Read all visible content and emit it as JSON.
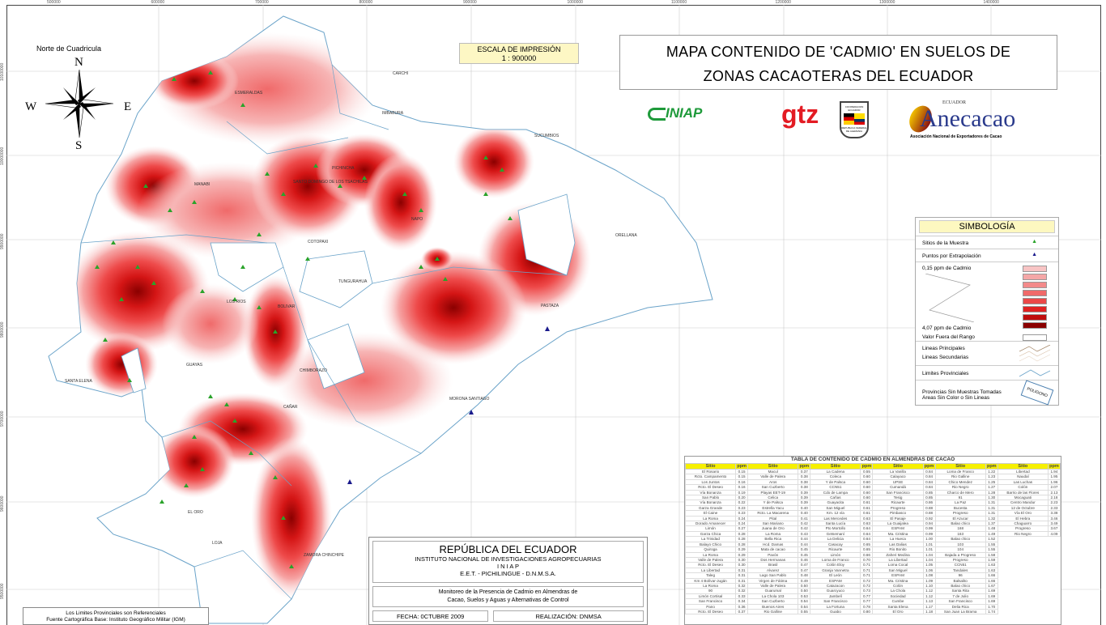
{
  "grid": {
    "x_labels": [
      "500000",
      "600000",
      "700000",
      "800000",
      "900000",
      "1000000",
      "1100000",
      "1200000",
      "1300000",
      "1400000"
    ],
    "y_labels": [
      "10100000",
      "10000000",
      "9900000",
      "9800000",
      "9700000",
      "9600000",
      "9500000"
    ]
  },
  "north_arrow": {
    "title": "Norte de Cuadricula",
    "n": "N",
    "s": "S",
    "e": "E",
    "w": "W"
  },
  "scale": {
    "label": "ESCALA DE IMPRESIÓN",
    "value": "1 : 900000"
  },
  "title": {
    "line1": "MAPA CONTENIDO DE 'CADMIO' EN SUELOS DE",
    "line2": "ZONAS CACAOTERAS DEL ECUADOR"
  },
  "logos": {
    "iniap": "INIAP",
    "gtz": "gtz",
    "gtz_shield_top": "COOPERACION ECUADOR",
    "gtz_shield_bottom": "REPUBLICA FEDERAL DE ALEMANIA",
    "anecacao_country": "ECUADOR",
    "anecacao": "Anecacao",
    "anecacao_sub": "Asociación Nacional de Exportadores de Cacao"
  },
  "provinces": [
    "ESMERALDAS",
    "CARCHI",
    "IMBABURA",
    "SUCUMBIOS",
    "MANABI",
    "SANTO DOMINGO DE LOS TSACHILAS",
    "PICHINCHA",
    "NAPO",
    "ORELLANA",
    "COTOPAXI",
    "TUNGURAHUA",
    "LOS RIOS",
    "BOLIVAR",
    "PASTAZA",
    "GUAYAS",
    "SANTA ELENA",
    "CHIMBORAZO",
    "CAÑAR",
    "MORONA SANTIAGO",
    "EL ORO",
    "LOJA",
    "ZAMORA CHINCHIPE"
  ],
  "legend": {
    "title": "SIMBOLOGÍA",
    "sites": "Sitios de la Muestra",
    "extrapolation": "Puntos por Extrapolación",
    "min": "0,15 ppm de Cadmio",
    "max": "4,07 ppm de Cadmio",
    "out_of_range": "Valor Fuera del Rango",
    "main_lines": "Lineas Principales",
    "secondary_lines": "Lineas Secundarias",
    "boundaries": "Limites Provinciales",
    "no_samples_1": "Provincias Sin Muestras Tomadas",
    "no_samples_2": "Areas Sin Color o Sin Lineas",
    "polygon": "POLIGONO",
    "ramp": [
      "#f8c4c4",
      "#f5a7a7",
      "#f38a8a",
      "#f06a6a",
      "#eb4848",
      "#e02222",
      "#bf0d0d",
      "#8a0000"
    ],
    "site_color": "#2aa32a",
    "extrap_color": "#1a1a8c"
  },
  "table": {
    "title": "TABLA DE CONTENIDO DE CADMIO EN ALMENDRAS DE CACAO",
    "col_site": "Sitio",
    "col_ppm": "ppm",
    "columns": [
      [
        [
          "El Rosario",
          "0.15"
        ],
        [
          "Rcto. Campamento",
          "0.15"
        ],
        [
          "Los Juntos",
          "0.16"
        ],
        [
          "Rcto. El Deseo",
          "0.16"
        ],
        [
          "Vía Bonanza",
          "0.19"
        ],
        [
          "San Pablo",
          "0.20"
        ],
        [
          "Vía Bonanza",
          "0.22"
        ],
        [
          "Garza Grande",
          "0.23"
        ],
        [
          "El Caine",
          "0.23"
        ],
        [
          "La Roma",
          "0.24"
        ],
        [
          "Dorado Amanecer",
          "0.24"
        ],
        [
          "Limón",
          "0.27"
        ],
        [
          "Garza Chica",
          "0.28"
        ],
        [
          "La Trinidad",
          "0.28"
        ],
        [
          "Balayo Chico",
          "0.28"
        ],
        [
          "Quiroga",
          "0.29"
        ],
        [
          "La Roma",
          "0.29"
        ],
        [
          "Valle de Palera",
          "0.30"
        ],
        [
          "Rcto. El Deseo",
          "0.30"
        ],
        [
          "La Libertad",
          "0.31"
        ],
        [
          "Taleg",
          "0.31"
        ],
        [
          "Km 4 Bolívar-Jugán",
          "0.31"
        ],
        [
          "La Roma",
          "0.32"
        ],
        [
          "90",
          "0.32"
        ],
        [
          "Limón Cortisal",
          "0.33"
        ],
        [
          "San Francisco",
          "0.34"
        ],
        [
          "Pano",
          "0.36"
        ],
        [
          "Rcto. El Deseo",
          "0.37"
        ]
      ],
      [
        [
          "Macul",
          "0.37"
        ],
        [
          "Valle de Palera",
          "0.38"
        ],
        [
          "Aros",
          "0.38"
        ],
        [
          "San Cuzberto",
          "0.38"
        ],
        [
          "Playas EET-19",
          "0.39"
        ],
        [
          "Celica",
          "0.39"
        ],
        [
          "Y de Palsca",
          "0.39"
        ],
        [
          "Estrella Yacu",
          "0.40"
        ],
        [
          "Rcto. La Macarena",
          "0.40"
        ],
        [
          "Pital",
          "0.41"
        ],
        [
          "San Mariano",
          "0.42"
        ],
        [
          "Juana de Oro",
          "0.42"
        ],
        [
          "La Roma",
          "0.43"
        ],
        [
          "Bella Rica",
          "0.44"
        ],
        [
          "Hcd. Damas",
          "0.44"
        ],
        [
          "Mata de cacao",
          "0.45"
        ],
        [
          "Pavón",
          "0.45"
        ],
        [
          "Dos Hermanas",
          "0.46"
        ],
        [
          "Brasil",
          "0.47"
        ],
        [
          "Alvarez",
          "0.47"
        ],
        [
          "Lago San Pablo",
          "0.48"
        ],
        [
          "Virgen de Fátima",
          "0.49"
        ],
        [
          "Valle de Palera",
          "0.50"
        ],
        [
          "Guarumal",
          "0.50"
        ],
        [
          "La Chola 103",
          "0.53"
        ],
        [
          "San Cuzberto",
          "0.54"
        ],
        [
          "Buenos Aires",
          "0.54"
        ],
        [
          "Rio Galline",
          "0.55"
        ]
      ],
      [
        [
          "La Cadena",
          "0.55"
        ],
        [
          "Coleca",
          "0.60"
        ],
        [
          "Y de Palsca",
          "0.60"
        ],
        [
          "CCN51",
          "0.60"
        ],
        [
          "Cdo de Lampa",
          "0.60"
        ],
        [
          "Cañas",
          "0.60"
        ],
        [
          "Guayacita",
          "0.61"
        ],
        [
          "San Miguel",
          "0.61"
        ],
        [
          "Km. 12 vía",
          "0.61"
        ],
        [
          "Las Mercedes",
          "0.63"
        ],
        [
          "Santa Lucía",
          "0.63"
        ],
        [
          "Pto Mortollo",
          "0.64"
        ],
        [
          "Getsemaní",
          "0.64"
        ],
        [
          "La Delicia",
          "0.64"
        ],
        [
          "Casacay",
          "0.65"
        ],
        [
          "Ricaurte",
          "0.65"
        ],
        [
          "Limón",
          "0.66"
        ],
        [
          "Loma de Franco",
          "0.70"
        ],
        [
          "Colón Eloy",
          "0.71"
        ],
        [
          "Granja Vannetra",
          "0.71"
        ],
        [
          "El León",
          "0.71"
        ],
        [
          "ESPAM",
          "0.72"
        ],
        [
          "Catazacon",
          "0.72"
        ],
        [
          "Guarcyuco",
          "0.73"
        ],
        [
          "Jambelí",
          "0.77"
        ],
        [
          "San Francisco",
          "0.77"
        ],
        [
          "La Fortuna",
          "0.78"
        ],
        [
          "Guabo",
          "0.80"
        ]
      ],
      [
        [
          "La Vanilla",
          "0.84"
        ],
        [
          "Calayaco",
          "0.84"
        ],
        [
          "UPSE",
          "0.84"
        ],
        [
          "Cumandá",
          "0.84"
        ],
        [
          "San Francisco",
          "0.85"
        ],
        [
          "Tesig",
          "0.85"
        ],
        [
          "Ricaurte",
          "0.86"
        ],
        [
          "Progreso",
          "0.88"
        ],
        [
          "Pimbasco",
          "0.88"
        ],
        [
          "El Pasaje",
          "0.92"
        ],
        [
          "La Guaijalea",
          "0.94"
        ],
        [
          "ESPAM",
          "0.99"
        ],
        [
          "Ma. Cristina",
          "0.99"
        ],
        [
          "La Hueca",
          "1.00"
        ],
        [
          "Las Dalias",
          "1.01"
        ],
        [
          "Rio Bonito",
          "1.01"
        ],
        [
          "Zaheri Medina",
          "1.04"
        ],
        [
          "La Libertad",
          "1.04"
        ],
        [
          "Loma Cocal",
          "1.05"
        ],
        [
          "San Miguel",
          "1.06"
        ],
        [
          "ESPAM",
          "1.08"
        ],
        [
          "Ma. Cristina",
          "1.09"
        ],
        [
          "Colón",
          "1.10"
        ],
        [
          "La Chola",
          "1.12"
        ],
        [
          "Sociedad",
          "1.12"
        ],
        [
          "Cumbe",
          "1.13"
        ],
        [
          "Santa Elena",
          "1.17"
        ],
        [
          "El Oro",
          "1.18"
        ]
      ],
      [
        [
          "Loma de Franco",
          "1.22"
        ],
        [
          "Rio Galline",
          "1.23"
        ],
        [
          "Chico Mendez",
          "1.25"
        ],
        [
          "Rio Negro",
          "1.27"
        ],
        [
          "Charco de Mero",
          "1.28"
        ],
        [
          "91",
          "1.30"
        ],
        [
          "La Paz",
          "1.31"
        ],
        [
          "Bucesta",
          "1.31"
        ],
        [
          "Progreso",
          "1.31"
        ],
        [
          "El Azucar",
          "1.32"
        ],
        [
          "Balao chico",
          "1.37"
        ],
        [
          "168",
          "1.48"
        ],
        [
          "163",
          "1.49"
        ],
        [
          "Balao chico",
          "1.52"
        ],
        [
          "103",
          "1.55"
        ],
        [
          "104",
          "1.55"
        ],
        [
          "Bajada a Progreso",
          "1.58"
        ],
        [
          "Progreso",
          "1.59"
        ],
        [
          "CCN51",
          "1.63"
        ],
        [
          "Tandales",
          "1.63"
        ],
        [
          "96",
          "1.66"
        ],
        [
          "Balsalito",
          "1.66"
        ],
        [
          "Balao chico",
          "1.67"
        ],
        [
          "Santa Rita",
          "1.69"
        ],
        [
          "7 de Julio",
          "1.69"
        ],
        [
          "San Francisco",
          "1.69"
        ],
        [
          "Delia Rica",
          "1.70"
        ],
        [
          "San Juan La Brama",
          "1.74"
        ]
      ],
      [
        [
          "Libertad",
          "1.94"
        ],
        [
          "Naudal",
          "1.95"
        ],
        [
          "Las Luchas",
          "1.96"
        ],
        [
          "Colón",
          "2.07"
        ],
        [
          "Barrio de las Flores",
          "2.13"
        ],
        [
          "Mocaguati",
          "2.18"
        ],
        [
          "Centro Mandur",
          "2.23"
        ],
        [
          "12 de Octubre",
          "2.33"
        ],
        [
          "Vía El Oro",
          "3.38"
        ],
        [
          "El Hebra",
          "3.46"
        ],
        [
          "Chaguarro",
          "3.49"
        ],
        [
          "Progreso",
          "3.67"
        ],
        [
          "Rio Negro",
          "4.09"
        ]
      ]
    ]
  },
  "info": {
    "country": "REPÚBLICA DEL ECUADOR",
    "institute": "INSTITUTO NACIONAL DE INVESTIGACIONES AGROPECUARIAS",
    "acronym": "I N I A P",
    "station": "E.E.T.  -  PICHILINGUE  -  D.N.M.S.A.",
    "project_1": "Monitoreo de la Presencia de Cadmio en Almendras de",
    "project_2": "Cacao, Suelos y Aguas y Alternativas de Control",
    "date": "FECHA:  0CTUBRE  2009",
    "author": "REALIZACIÓN:  DNMSA"
  },
  "note": {
    "line1": "Los Limites Provinciales son Referenciales",
    "line2": "Fuente Cartográfica Base: Instituto Geográfico Militar (IGM)"
  }
}
